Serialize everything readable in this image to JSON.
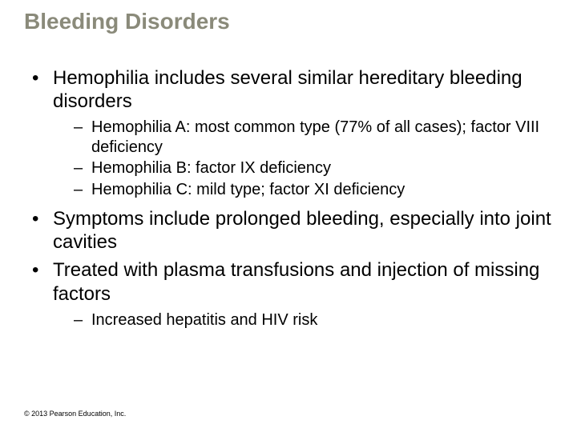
{
  "title": "Bleeding Disorders",
  "title_color": "#8a8a7a",
  "background_color": "#ffffff",
  "text_color": "#000000",
  "fonts": {
    "family": "Arial",
    "title_size_pt": 28,
    "body_size_pt": 24,
    "sub_size_pt": 20,
    "footer_size_pt": 9
  },
  "bullets": [
    {
      "text": "Hemophilia includes several similar hereditary bleeding disorders",
      "sub": [
        "Hemophilia A: most common type (77% of all cases); factor VIII deficiency",
        "Hemophilia B: factor IX deficiency",
        "Hemophilia C: mild type; factor XI deficiency"
      ]
    },
    {
      "text": "Symptoms include prolonged bleeding, especially into joint cavities",
      "sub": []
    },
    {
      "text": "Treated with plasma transfusions and injection of missing factors",
      "sub": [
        "Increased hepatitis and HIV risk"
      ]
    }
  ],
  "footer": "© 2013 Pearson Education, Inc."
}
